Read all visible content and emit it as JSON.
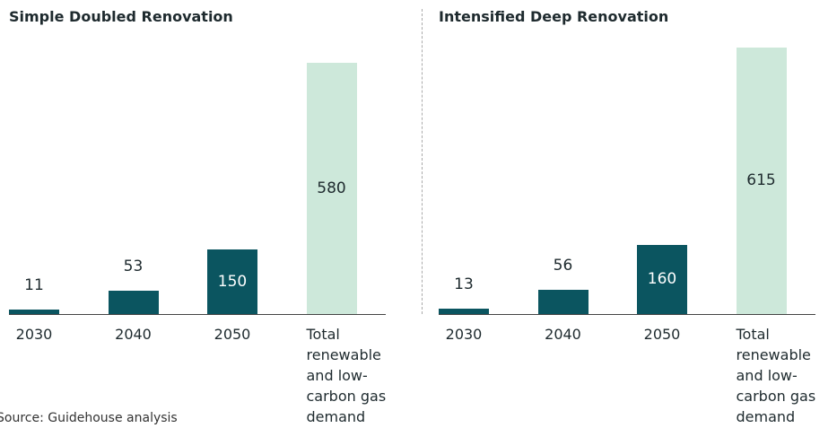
{
  "chart_data": [
    {
      "type": "bar",
      "title": "Simple Doubled Renovation",
      "categories": [
        "2030",
        "2040",
        "2050",
        "Total renewable and low-carbon gas demand"
      ],
      "values": [
        11,
        53,
        150,
        580
      ],
      "colors": [
        "#0b5560",
        "#0b5560",
        "#0b5560",
        "#cde8da"
      ]
    },
    {
      "type": "bar",
      "title": "Intensified Deep Renovation",
      "categories": [
        "2030",
        "2040",
        "2050",
        "Total renewable and low-carbon gas demand"
      ],
      "values": [
        13,
        56,
        160,
        615
      ],
      "colors": [
        "#0b5560",
        "#0b5560",
        "#0b5560",
        "#cde8da"
      ]
    }
  ],
  "source": "Source: Guidehouse analysis"
}
